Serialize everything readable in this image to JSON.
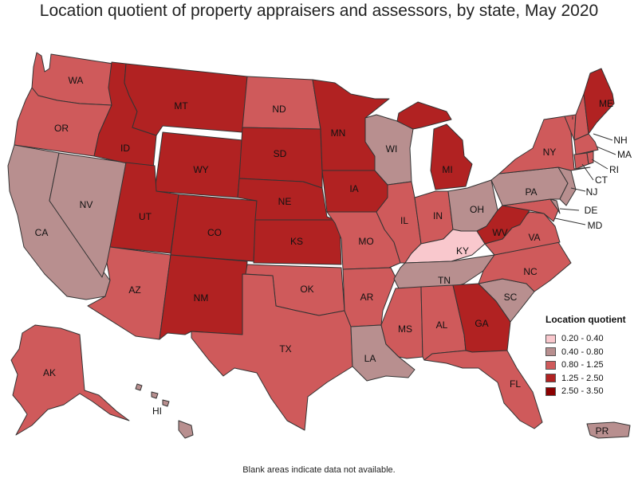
{
  "title": "Location quotient of property appraisers and assessors, by state, May 2020",
  "footnote": "Blank areas indicate data not available.",
  "legend": {
    "title": "Location quotient",
    "items": [
      {
        "label": "0.20 - 0.40",
        "color": "#f9c8cd"
      },
      {
        "label": "0.40 - 0.80",
        "color": "#b88f8f"
      },
      {
        "label": "0.80 - 1.25",
        "color": "#cf5a5b"
      },
      {
        "label": "1.25 - 2.50",
        "color": "#b12222"
      },
      {
        "label": "2.50 - 3.50",
        "color": "#8b0000"
      }
    ]
  },
  "states": [
    {
      "abbr": "WA",
      "class": "0.80 - 1.25"
    },
    {
      "abbr": "OR",
      "class": "0.80 - 1.25"
    },
    {
      "abbr": "CA",
      "class": "0.40 - 0.80"
    },
    {
      "abbr": "NV",
      "class": "0.40 - 0.80"
    },
    {
      "abbr": "ID",
      "class": "1.25 - 2.50"
    },
    {
      "abbr": "MT",
      "class": "1.25 - 2.50"
    },
    {
      "abbr": "WY",
      "class": "1.25 - 2.50"
    },
    {
      "abbr": "UT",
      "class": "1.25 - 2.50"
    },
    {
      "abbr": "CO",
      "class": "1.25 - 2.50"
    },
    {
      "abbr": "AZ",
      "class": "0.80 - 1.25"
    },
    {
      "abbr": "NM",
      "class": "1.25 - 2.50"
    },
    {
      "abbr": "ND",
      "class": "0.80 - 1.25"
    },
    {
      "abbr": "SD",
      "class": "1.25 - 2.50"
    },
    {
      "abbr": "NE",
      "class": "1.25 - 2.50"
    },
    {
      "abbr": "KS",
      "class": "1.25 - 2.50"
    },
    {
      "abbr": "OK",
      "class": "0.80 - 1.25"
    },
    {
      "abbr": "TX",
      "class": "0.80 - 1.25"
    },
    {
      "abbr": "MN",
      "class": "1.25 - 2.50"
    },
    {
      "abbr": "IA",
      "class": "1.25 - 2.50"
    },
    {
      "abbr": "MO",
      "class": "0.80 - 1.25"
    },
    {
      "abbr": "AR",
      "class": "0.80 - 1.25"
    },
    {
      "abbr": "LA",
      "class": "0.40 - 0.80"
    },
    {
      "abbr": "WI",
      "class": "0.40 - 0.80"
    },
    {
      "abbr": "IL",
      "class": "0.80 - 1.25"
    },
    {
      "abbr": "MI",
      "class": "1.25 - 2.50"
    },
    {
      "abbr": "IN",
      "class": "0.80 - 1.25"
    },
    {
      "abbr": "OH",
      "class": "0.40 - 0.80"
    },
    {
      "abbr": "KY",
      "class": "0.20 - 0.40"
    },
    {
      "abbr": "TN",
      "class": "0.40 - 0.80"
    },
    {
      "abbr": "MS",
      "class": "0.80 - 1.25"
    },
    {
      "abbr": "AL",
      "class": "0.80 - 1.25"
    },
    {
      "abbr": "GA",
      "class": "1.25 - 2.50"
    },
    {
      "abbr": "FL",
      "class": "0.80 - 1.25"
    },
    {
      "abbr": "SC",
      "class": "0.40 - 0.80"
    },
    {
      "abbr": "NC",
      "class": "0.80 - 1.25"
    },
    {
      "abbr": "VA",
      "class": "0.80 - 1.25"
    },
    {
      "abbr": "WV",
      "class": "1.25 - 2.50"
    },
    {
      "abbr": "PA",
      "class": "0.40 - 0.80"
    },
    {
      "abbr": "NY",
      "class": "0.80 - 1.25"
    },
    {
      "abbr": "ME",
      "class": "1.25 - 2.50"
    },
    {
      "abbr": "VT",
      "class": "0.80 - 1.25"
    },
    {
      "abbr": "NH",
      "class": "0.80 - 1.25"
    },
    {
      "abbr": "MA",
      "class": "0.80 - 1.25"
    },
    {
      "abbr": "RI",
      "class": "0.80 - 1.25"
    },
    {
      "abbr": "CT",
      "class": "0.80 - 1.25"
    },
    {
      "abbr": "NJ",
      "class": "0.40 - 0.80"
    },
    {
      "abbr": "DE",
      "class": "0.40 - 0.80"
    },
    {
      "abbr": "MD",
      "class": "0.80 - 1.25"
    },
    {
      "abbr": "AK",
      "class": "0.80 - 1.25"
    },
    {
      "abbr": "HI",
      "class": "0.40 - 0.80"
    },
    {
      "abbr": "PR",
      "class": "0.40 - 0.80"
    }
  ]
}
